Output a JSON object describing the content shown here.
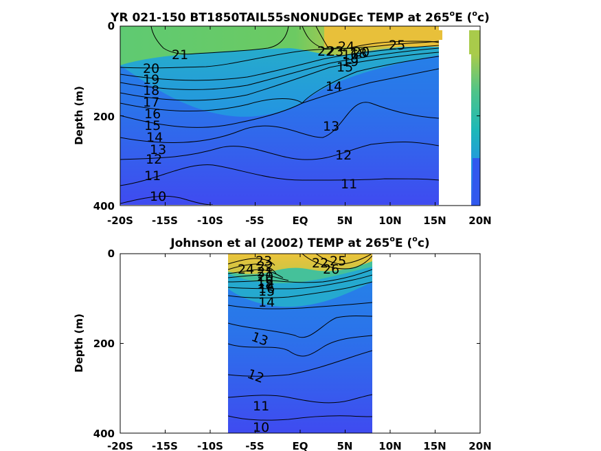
{
  "chart_data": [
    {
      "type": "contour",
      "title": "YR 021-150 BT1850TAIL55sNONUDGEc TEMP at 265",
      "title_degree": "o",
      "title_tail_a": "E (",
      "title_tail_b": "c)",
      "ylabel": "Depth (m)",
      "xlim": [
        -20,
        20
      ],
      "ylim": [
        0,
        400
      ],
      "y_reversed": true,
      "x_tick_labels": [
        "-20S",
        "-15S",
        "-10S",
        "-5S",
        "EQ",
        "5N",
        "10N",
        "15N",
        "20N"
      ],
      "y_tick_labels": [
        "0",
        "200",
        "400"
      ],
      "data_extent": {
        "lat_min": -20,
        "lat_max": 15,
        "extra_strip_lat": [
          18.7,
          20
        ]
      },
      "contour_labels": [
        "21",
        "25",
        "20",
        "19",
        "18",
        "17",
        "16",
        "15",
        "14",
        "13",
        "12",
        "11",
        "10",
        "22",
        "23",
        "24",
        "16",
        "18",
        "19",
        "20",
        "15",
        "14",
        "13",
        "12",
        "11"
      ],
      "colormap": [
        "#3e4bf0",
        "#2a8ae8",
        "#1fb2c6",
        "#55c784",
        "#a7cc4f",
        "#e8c03a"
      ]
    },
    {
      "type": "contour",
      "title": "Johnson et al (2002) TEMP at 265",
      "title_degree": "o",
      "title_tail_a": "E (",
      "title_tail_b": "c)",
      "ylabel": "Depth (m)",
      "xlim": [
        -20,
        20
      ],
      "ylim": [
        0,
        400
      ],
      "y_reversed": true,
      "x_tick_labels": [
        "-20S",
        "-15S",
        "-10S",
        "-5S",
        "EQ",
        "5N",
        "10N",
        "15N",
        "20N"
      ],
      "y_tick_labels": [
        "0",
        "200",
        "400"
      ],
      "data_extent": {
        "lat_min": -8,
        "lat_max": 8
      },
      "contour_labels": [
        "24",
        "23",
        "22",
        "21",
        "20",
        "19",
        "18",
        "16",
        "15",
        "14",
        "13",
        "12",
        "11",
        "10",
        "22",
        "25",
        "26"
      ],
      "colormap": [
        "#3e4bf0",
        "#2a8ae8",
        "#1fb2c6",
        "#55c784",
        "#a7cc4f",
        "#e8c03a"
      ]
    }
  ]
}
